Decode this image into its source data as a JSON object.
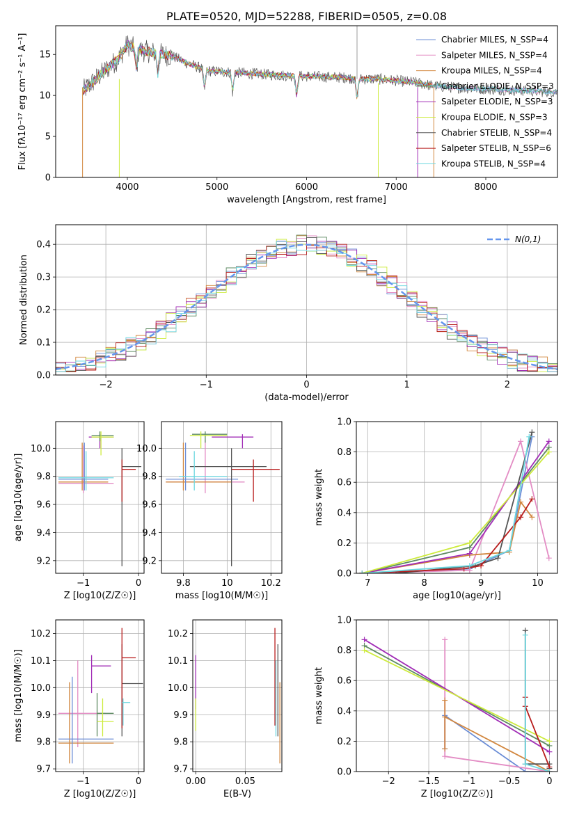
{
  "chart_data": [
    {
      "type": "line",
      "title": "PLATE=0520, MJD=52288, FIBERID=0505, z=0.08",
      "xlabel": "wavelength [Angstrom, rest frame]",
      "ylabel": "Flux [fλ10⁻¹⁷ erg cm⁻² s⁻¹ A⁻¹]",
      "xlim": [
        3200,
        8800
      ],
      "ylim": [
        0,
        18.5
      ],
      "xticks": [
        4000,
        5000,
        6000,
        7000,
        8000
      ],
      "yticks": [
        0,
        5,
        10,
        15
      ],
      "grid": false,
      "legend_position": "top-right",
      "series": [
        {
          "name": "Chabrier MILES, N_SSP=4",
          "color": "#6b8dd6"
        },
        {
          "name": "Salpeter MILES, N_SSP=4",
          "color": "#e38cc4"
        },
        {
          "name": "Kroupa MILES, N_SSP=4",
          "color": "#d2873f"
        },
        {
          "name": "Chabrier ELODIE, N_SSP=3",
          "color": "#5e8a62"
        },
        {
          "name": "Salpeter ELODIE, N_SSP=3",
          "color": "#a12db6"
        },
        {
          "name": "Kroupa ELODIE, N_SSP=3",
          "color": "#cdeb3c"
        },
        {
          "name": "Chabrier STELIB, N_SSP=4",
          "color": "#555555"
        },
        {
          "name": "Salpeter STELIB, N_SSP=6",
          "color": "#b81c1c"
        },
        {
          "name": "Kroupa STELIB, N_SSP=4",
          "color": "#6cd7e0"
        }
      ],
      "spectrum_envelope": {
        "x": [
          3500,
          3700,
          3900,
          4000,
          4100,
          4300,
          4500,
          4700,
          4900,
          5200,
          5500,
          5800,
          6100,
          6400,
          6600,
          6800,
          7000,
          7200,
          7400,
          7600,
          7800,
          8000,
          8200,
          8400,
          8600,
          8800
        ],
        "y": [
          10.5,
          12.5,
          14.5,
          16.2,
          15.6,
          15.2,
          14.8,
          13.8,
          13.0,
          12.8,
          12.6,
          12.4,
          12.3,
          12.2,
          12.0,
          12.0,
          11.8,
          11.6,
          11.2,
          11.0,
          10.9,
          10.8,
          10.7,
          10.6,
          10.5,
          10.4
        ]
      }
    },
    {
      "type": "line",
      "xlabel": "(data-model)/error",
      "ylabel": "Normed distribution",
      "xlim": [
        -2.5,
        2.5
      ],
      "ylim": [
        0,
        0.46
      ],
      "xticks": [
        -2,
        -1,
        0,
        1,
        2
      ],
      "yticks": [
        0.0,
        0.1,
        0.2,
        0.3,
        0.4
      ],
      "grid": true,
      "legend_position": "top-right",
      "reference_curve": {
        "name": "N(0,1)",
        "color": "#6495ed"
      },
      "histogram_bin_width": 0.1
    },
    {
      "type": "scatter",
      "xlabel": "Z [log10(Z/Z☉)]",
      "ylabel": "age  [log10(age/yr)]",
      "xlim": [
        -1.5,
        0.1
      ],
      "ylim": [
        9.11,
        10.19
      ],
      "xticks": [
        -1,
        0
      ],
      "yticks": [
        9.2,
        9.4,
        9.6,
        9.8,
        10.0
      ],
      "grid": true,
      "error_crosses": [
        {
          "x": -1.0,
          "xlo": -1.45,
          "xhi": -0.45,
          "y": 9.75,
          "ylo": 9.68,
          "yhi": 10.02,
          "color": "#e38cc4"
        },
        {
          "x": -1.02,
          "xlo": -1.45,
          "xhi": -0.55,
          "y": 9.76,
          "ylo": 9.7,
          "yhi": 10.04,
          "color": "#d2873f"
        },
        {
          "x": -0.98,
          "xlo": -1.45,
          "xhi": -0.55,
          "y": 9.78,
          "ylo": 9.7,
          "yhi": 10.04,
          "color": "#6b8dd6"
        },
        {
          "x": -0.7,
          "xlo": -0.9,
          "xhi": -0.45,
          "y": 10.08,
          "ylo": 10.0,
          "yhi": 10.1,
          "color": "#a12db6"
        },
        {
          "x": -0.7,
          "xlo": -0.85,
          "xhi": -0.45,
          "y": 10.09,
          "ylo": 10.05,
          "yhi": 10.12,
          "color": "#5e8a62"
        },
        {
          "x": -0.68,
          "xlo": -0.85,
          "xhi": -0.45,
          "y": 10.08,
          "ylo": 9.95,
          "yhi": 10.12,
          "color": "#cdeb3c"
        },
        {
          "x": -0.3,
          "xlo": -0.3,
          "xhi": 0.05,
          "y": 9.87,
          "ylo": 9.16,
          "yhi": 10.0,
          "color": "#555555"
        },
        {
          "x": -0.3,
          "xlo": -0.3,
          "xhi": -0.05,
          "y": 9.85,
          "ylo": 9.62,
          "yhi": 9.92,
          "color": "#b81c1c"
        },
        {
          "x": -0.95,
          "xlo": -1.45,
          "xhi": -0.45,
          "y": 9.79,
          "ylo": 9.7,
          "yhi": 9.98,
          "color": "#6cd7e0"
        }
      ]
    },
    {
      "type": "scatter",
      "xlabel": "mass [log10(M/M☉)]",
      "ylabel": "",
      "xlim": [
        9.7,
        10.25
      ],
      "ylim": [
        9.11,
        10.19
      ],
      "xticks": [
        9.8,
        10.0,
        10.2
      ],
      "yticks": [
        9.2,
        9.4,
        9.6,
        9.8,
        10.0
      ],
      "grid": true,
      "error_crosses": [
        {
          "x": 9.9,
          "xlo": 9.72,
          "xhi": 10.08,
          "y": 9.76,
          "ylo": 9.68,
          "yhi": 10.06,
          "color": "#e38cc4"
        },
        {
          "x": 9.8,
          "xlo": 9.72,
          "xhi": 10.02,
          "y": 9.76,
          "ylo": 9.7,
          "yhi": 10.04,
          "color": "#d2873f"
        },
        {
          "x": 9.81,
          "xlo": 9.72,
          "xhi": 10.05,
          "y": 9.78,
          "ylo": 9.7,
          "yhi": 10.04,
          "color": "#6b8dd6"
        },
        {
          "x": 10.07,
          "xlo": 9.93,
          "xhi": 10.12,
          "y": 10.08,
          "ylo": 10.0,
          "yhi": 10.1,
          "color": "#a12db6"
        },
        {
          "x": 9.9,
          "xlo": 9.84,
          "xhi": 10.0,
          "y": 10.1,
          "ylo": 10.04,
          "yhi": 10.12,
          "color": "#5e8a62"
        },
        {
          "x": 9.88,
          "xlo": 9.83,
          "xhi": 10.0,
          "y": 10.09,
          "ylo": 10.0,
          "yhi": 10.12,
          "color": "#cdeb3c"
        },
        {
          "x": 10.02,
          "xlo": 9.83,
          "xhi": 10.18,
          "y": 9.87,
          "ylo": 9.16,
          "yhi": 10.0,
          "color": "#555555"
        },
        {
          "x": 10.12,
          "xlo": 10.02,
          "xhi": 10.24,
          "y": 9.85,
          "ylo": 9.62,
          "yhi": 9.92,
          "color": "#b81c1c"
        },
        {
          "x": 9.85,
          "xlo": 9.78,
          "xhi": 10.0,
          "y": 9.8,
          "ylo": 9.7,
          "yhi": 9.98,
          "color": "#6cd7e0"
        }
      ]
    },
    {
      "type": "line",
      "xlabel": "age  [log10(age/yr)]",
      "ylabel": "mass weight",
      "xlim": [
        6.8,
        10.35
      ],
      "ylim": [
        0.0,
        1.0
      ],
      "xticks": [
        7,
        8,
        9,
        10
      ],
      "yticks": [
        0.0,
        0.2,
        0.4,
        0.6,
        0.8,
        1.0
      ],
      "grid": true,
      "series": [
        {
          "name": "Chabrier MILES, N_SSP=4",
          "color": "#6b8dd6",
          "x": [
            6.9,
            8.8,
            9.5,
            9.9
          ],
          "y": [
            0.0,
            0.03,
            0.15,
            0.9
          ]
        },
        {
          "name": "Salpeter MILES, N_SSP=4",
          "color": "#e38cc4",
          "x": [
            6.9,
            8.8,
            9.7,
            10.2
          ],
          "y": [
            0.0,
            0.02,
            0.87,
            0.1
          ]
        },
        {
          "name": "Kroupa MILES, N_SSP=4",
          "color": "#d2873f",
          "x": [
            6.9,
            8.8,
            9.5,
            9.7,
            9.9
          ],
          "y": [
            0.0,
            0.12,
            0.14,
            0.47,
            0.37
          ]
        },
        {
          "name": "Chabrier ELODIE, N_SSP=3",
          "color": "#5e8a62",
          "x": [
            6.9,
            8.8,
            10.2
          ],
          "y": [
            0.0,
            0.17,
            0.83
          ]
        },
        {
          "name": "Salpeter ELODIE, N_SSP=3",
          "color": "#a12db6",
          "x": [
            6.9,
            8.8,
            10.2
          ],
          "y": [
            0.0,
            0.13,
            0.87
          ]
        },
        {
          "name": "Kroupa ELODIE, N_SSP=3",
          "color": "#cdeb3c",
          "x": [
            6.9,
            8.8,
            10.2
          ],
          "y": [
            0.0,
            0.2,
            0.8
          ]
        },
        {
          "name": "Chabrier STELIB, N_SSP=4",
          "color": "#555555",
          "x": [
            7.5,
            8.9,
            9.3,
            9.9
          ],
          "y": [
            0.0,
            0.05,
            0.1,
            0.93
          ]
        },
        {
          "name": "Salpeter STELIB, N_SSP=6",
          "color": "#b81c1c",
          "x": [
            6.9,
            8.7,
            9.0,
            9.7,
            9.9
          ],
          "y": [
            0.0,
            0.03,
            0.05,
            0.37,
            0.49
          ]
        },
        {
          "name": "Kroupa STELIB, N_SSP=4",
          "color": "#6cd7e0",
          "x": [
            6.9,
            8.8,
            9.5,
            9.85
          ],
          "y": [
            0.0,
            0.05,
            0.15,
            0.9
          ]
        }
      ]
    },
    {
      "type": "scatter",
      "xlabel": "Z [log10(Z/Z☉)]",
      "ylabel": "mass [log10(M/M☉)]",
      "xlim": [
        -1.5,
        0.1
      ],
      "ylim": [
        9.69,
        10.25
      ],
      "xticks": [
        -1,
        0
      ],
      "yticks": [
        9.7,
        9.8,
        9.9,
        10.0,
        10.1,
        10.2
      ],
      "grid": true,
      "error_crosses": [
        {
          "x": -1.1,
          "xlo": -1.45,
          "xhi": -0.6,
          "y": 9.905,
          "ylo": 9.78,
          "yhi": 10.1,
          "color": "#e38cc4"
        },
        {
          "x": -1.25,
          "xlo": -1.45,
          "xhi": -0.45,
          "y": 9.795,
          "ylo": 9.72,
          "yhi": 10.02,
          "color": "#d2873f"
        },
        {
          "x": -1.2,
          "xlo": -1.45,
          "xhi": -0.45,
          "y": 9.81,
          "ylo": 9.72,
          "yhi": 10.04,
          "color": "#6b8dd6"
        },
        {
          "x": -0.85,
          "xlo": -0.85,
          "xhi": -0.5,
          "y": 10.08,
          "ylo": 9.98,
          "yhi": 10.12,
          "color": "#a12db6"
        },
        {
          "x": -0.75,
          "xlo": -0.75,
          "xhi": -0.45,
          "y": 9.905,
          "ylo": 9.82,
          "yhi": 9.98,
          "color": "#5e8a62"
        },
        {
          "x": -0.65,
          "xlo": -0.75,
          "xhi": -0.45,
          "y": 9.875,
          "ylo": 9.82,
          "yhi": 9.96,
          "color": "#cdeb3c"
        },
        {
          "x": -0.3,
          "xlo": -0.3,
          "xhi": 0.08,
          "y": 10.015,
          "ylo": 9.82,
          "yhi": 10.16,
          "color": "#555555"
        },
        {
          "x": -0.3,
          "xlo": -0.3,
          "xhi": -0.05,
          "y": 10.11,
          "ylo": 9.85,
          "yhi": 10.22,
          "color": "#b81c1c"
        },
        {
          "x": -0.28,
          "xlo": -0.3,
          "xhi": -0.15,
          "y": 9.945,
          "ylo": 9.86,
          "yhi": 9.96,
          "color": "#6cd7e0"
        }
      ]
    },
    {
      "type": "scatter",
      "xlabel": "E(B-V)",
      "ylabel": "",
      "xlim": [
        -0.003,
        0.087
      ],
      "ylim": [
        9.69,
        10.25
      ],
      "xticks": [
        0.0,
        0.05
      ],
      "xticklabels": [
        "0.00",
        "0.05"
      ],
      "yticks": [
        9.7,
        9.8,
        9.9,
        10.0,
        10.1,
        10.2
      ],
      "grid": true,
      "error_crosses": [
        {
          "x": 0.0,
          "xlo": 0.0,
          "xhi": 0.0,
          "y": 10.02,
          "ylo": 9.92,
          "yhi": 10.12,
          "color": "#a12db6"
        },
        {
          "x": 0.0,
          "xlo": 0.0,
          "xhi": 0.0,
          "y": 9.9,
          "ylo": 9.84,
          "yhi": 9.96,
          "color": "#cdeb3c"
        },
        {
          "x": 0.08,
          "xlo": 0.08,
          "xhi": 0.08,
          "y": 10.05,
          "ylo": 9.86,
          "yhi": 10.22,
          "color": "#b81c1c"
        },
        {
          "x": 0.081,
          "xlo": 0.081,
          "xhi": 0.081,
          "y": 9.95,
          "ylo": 9.82,
          "yhi": 10.1,
          "color": "#6cd7e0"
        },
        {
          "x": 0.083,
          "xlo": 0.083,
          "xhi": 0.083,
          "y": 10.0,
          "ylo": 9.82,
          "yhi": 10.16,
          "color": "#555555"
        },
        {
          "x": 0.085,
          "xlo": 0.085,
          "xhi": 0.085,
          "y": 9.85,
          "ylo": 9.72,
          "yhi": 10.02,
          "color": "#d2873f"
        }
      ]
    },
    {
      "type": "line",
      "xlabel": "Z [log10(Z/Z☉)]",
      "ylabel": "mass weight",
      "xlim": [
        -2.4,
        0.1
      ],
      "ylim": [
        0.0,
        1.0
      ],
      "xticks": [
        -2.0,
        -1.5,
        -1.0,
        -0.5,
        0.0
      ],
      "yticks": [
        0.0,
        0.2,
        0.4,
        0.6,
        0.8,
        1.0
      ],
      "grid": true,
      "series": [
        {
          "name": "Chabrier MILES, N_SSP=4",
          "color": "#6b8dd6",
          "x": [
            -1.3,
            -1.3,
            -0.3,
            0.0
          ],
          "y": [
            0.15,
            0.37,
            0.0,
            0.0
          ]
        },
        {
          "name": "Salpeter MILES, N_SSP=4",
          "color": "#e38cc4",
          "x": [
            -1.3,
            -1.3,
            0.0
          ],
          "y": [
            0.87,
            0.1,
            0.0
          ]
        },
        {
          "name": "Kroupa MILES, N_SSP=4",
          "color": "#d2873f",
          "x": [
            -1.3,
            -1.3,
            -1.3,
            0.0
          ],
          "y": [
            0.15,
            0.47,
            0.36,
            0.0
          ]
        },
        {
          "name": "Chabrier ELODIE, N_SSP=3",
          "color": "#5e8a62",
          "x": [
            -2.3,
            0.0
          ],
          "y": [
            0.83,
            0.17
          ]
        },
        {
          "name": "Salpeter ELODIE, N_SSP=3",
          "color": "#a12db6",
          "x": [
            -2.3,
            0.0
          ],
          "y": [
            0.87,
            0.13
          ]
        },
        {
          "name": "Kroupa ELODIE, N_SSP=3",
          "color": "#cdeb3c",
          "x": [
            -2.3,
            0.0
          ],
          "y": [
            0.8,
            0.2
          ]
        },
        {
          "name": "Chabrier STELIB, N_SSP=4",
          "color": "#555555",
          "x": [
            -0.3,
            -0.3,
            0.0,
            0.0
          ],
          "y": [
            0.93,
            0.05,
            0.05,
            0.02
          ]
        },
        {
          "name": "Salpeter STELIB, N_SSP=6",
          "color": "#b81c1c",
          "x": [
            -0.3,
            -0.3,
            0.0
          ],
          "y": [
            0.49,
            0.43,
            0.03
          ]
        },
        {
          "name": "Kroupa STELIB, N_SSP=4",
          "color": "#6cd7e0",
          "x": [
            -0.3,
            -0.3,
            0.0
          ],
          "y": [
            0.9,
            0.05,
            0.0
          ]
        }
      ]
    }
  ]
}
